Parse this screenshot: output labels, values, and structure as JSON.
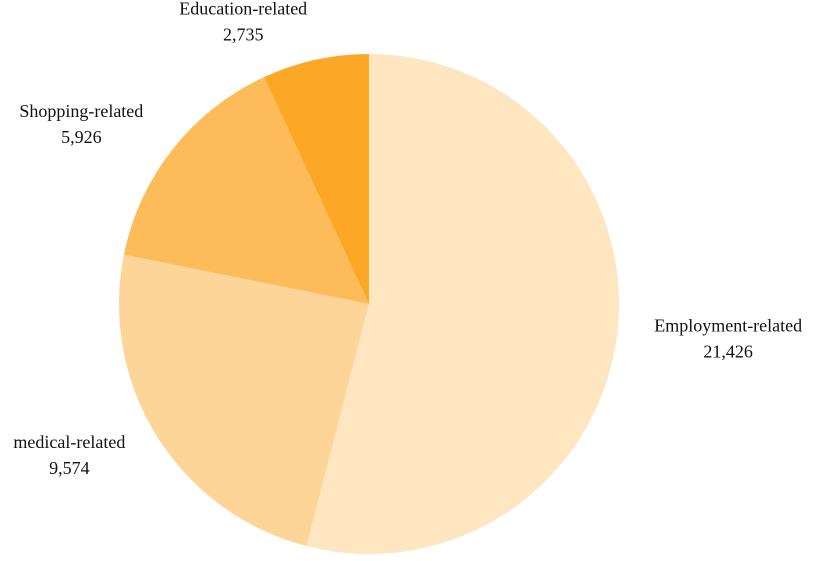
{
  "chart_data": {
    "type": "pie",
    "categories": [
      "Employment-related",
      "medical-related",
      "Shopping-related",
      "Education-related"
    ],
    "values": [
      21426,
      9574,
      5926,
      2735
    ],
    "value_labels": [
      "21,426",
      "9,574",
      "5,926",
      "2,735"
    ],
    "colors": [
      "#fde6c0",
      "#fdd598",
      "#fdbb5a",
      "#fda726"
    ]
  }
}
